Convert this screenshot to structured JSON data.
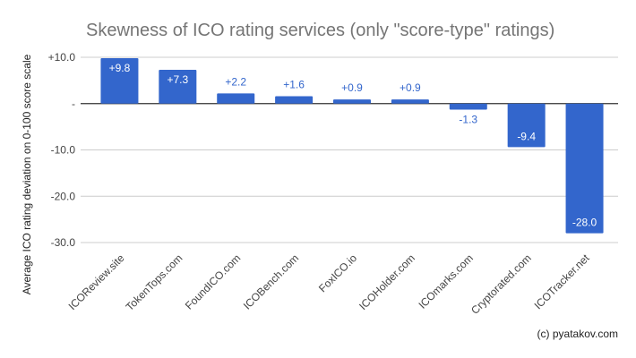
{
  "chart_data": {
    "type": "bar",
    "title": "Skewness of ICO rating services (only \"score-type\" ratings)",
    "xlabel": "",
    "ylabel": "Average ICO rating deviation on 0-100 score scale",
    "ylim": [
      -30,
      10
    ],
    "yticks": [
      10,
      0,
      -10,
      -20,
      -30
    ],
    "ytick_labels": [
      "+10.0",
      "-",
      "-10.0",
      "-20.0",
      "-30.0"
    ],
    "grid": true,
    "categories": [
      "ICOReview.site",
      "TokenTops.com",
      "FoundICO.com",
      "ICOBench.com",
      "FoxICO.io",
      "ICOHolder.com",
      "ICOmarks.com",
      "Cryptorated.com",
      "ICOTracker.net"
    ],
    "values": [
      9.8,
      7.3,
      2.2,
      1.6,
      0.9,
      0.9,
      -1.3,
      -9.4,
      -28.0
    ],
    "data_labels": [
      "+9.8",
      "+7.3",
      "+2.2",
      "+1.6",
      "+0.9",
      "+0.9",
      "-1.3",
      "-9.4",
      "-28.0"
    ],
    "bar_color": "#3366cc",
    "credit": "(c) pyatakov.com"
  }
}
